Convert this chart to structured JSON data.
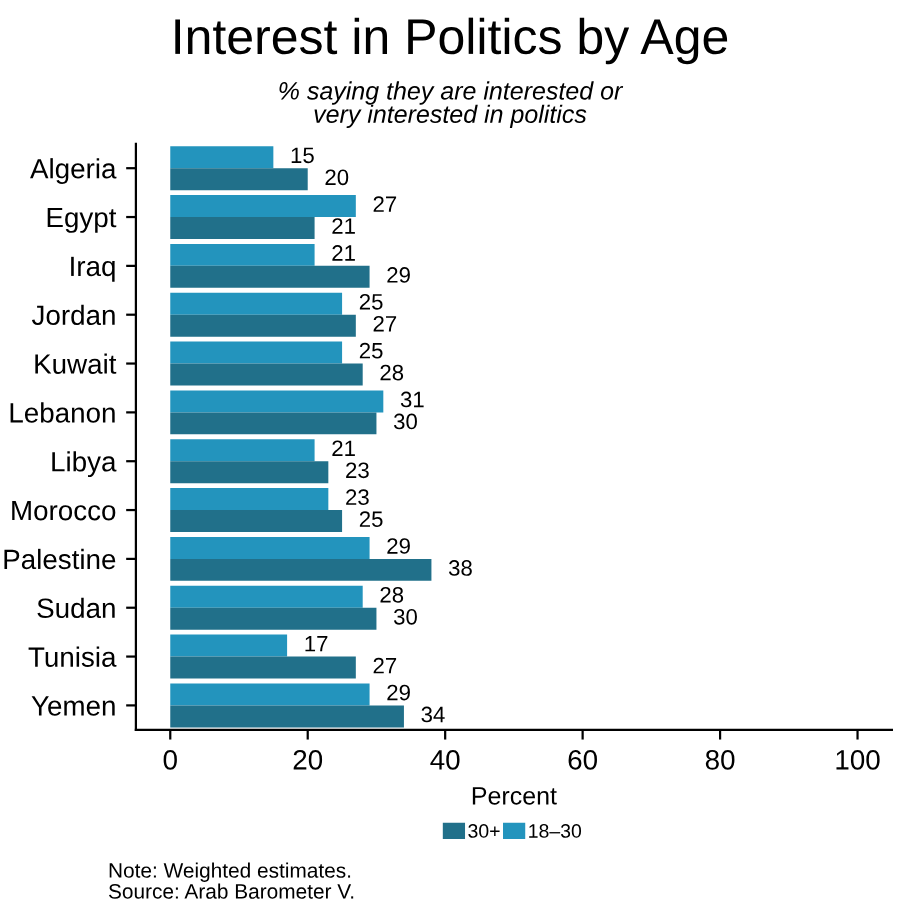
{
  "chart_data": {
    "type": "bar",
    "orientation": "horizontal",
    "title": "Interest in Politics by Age",
    "subtitle": "% saying they are interested or\nvery interested in politics",
    "xlabel": "Percent",
    "categories": [
      "Algeria",
      "Egypt",
      "Iraq",
      "Jordan",
      "Kuwait",
      "Lebanon",
      "Libya",
      "Morocco",
      "Palestine",
      "Sudan",
      "Tunisia",
      "Yemen"
    ],
    "series": [
      {
        "name": "18–30",
        "color": "#2394bd",
        "values": [
          15,
          27,
          21,
          25,
          25,
          31,
          21,
          23,
          29,
          28,
          17,
          29
        ]
      },
      {
        "name": "30+",
        "color": "#21708a",
        "values": [
          20,
          21,
          29,
          27,
          28,
          30,
          23,
          25,
          38,
          30,
          27,
          34
        ]
      }
    ],
    "xlim": [
      -5,
      105
    ],
    "xticks": [
      0,
      20,
      40,
      60,
      80,
      100
    ],
    "data_labels": true,
    "grid": false,
    "legend": "bottom",
    "annotations": [
      "Note: Weighted estimates.\nSource: Arab Barometer V."
    ]
  }
}
